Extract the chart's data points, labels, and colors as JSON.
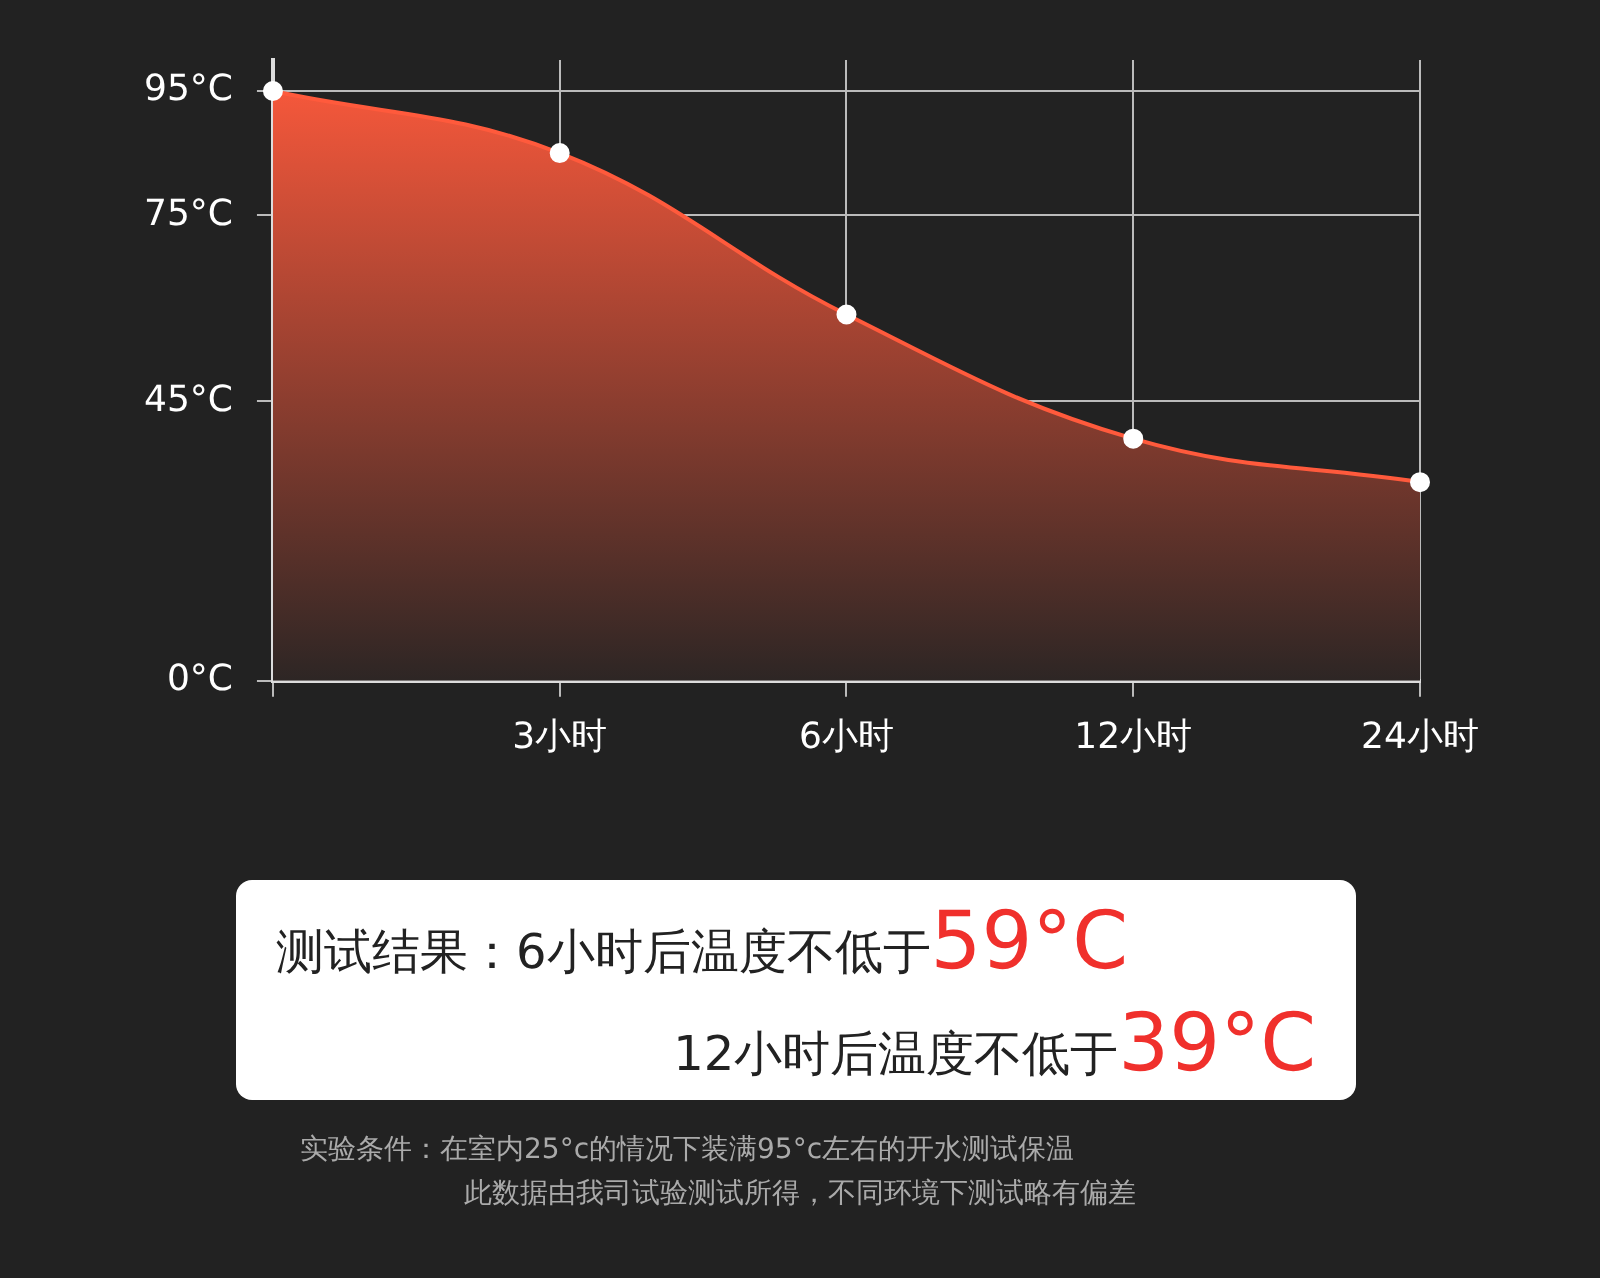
{
  "chart_data": {
    "type": "area",
    "categories": [
      null,
      "3小时",
      "6小时",
      "12小时",
      "24小时"
    ],
    "series": [
      {
        "color": "#ff5a3c",
        "values": [
          95,
          85,
          59,
          39,
          32
        ]
      }
    ],
    "ylim": [
      0,
      100
    ],
    "yticks": [
      {
        "value": 0,
        "label": "0°C"
      },
      {
        "value": 45,
        "label": "45°C"
      },
      {
        "value": 75,
        "label": "75°C"
      },
      {
        "value": 95,
        "label": "95°C"
      }
    ],
    "grid": true,
    "legend": false,
    "marker": "circle",
    "annotations": [
      "测试结果：6小时后温度不低于59°C",
      "12小时后温度不低于39°C",
      "实验条件：在室内25°c的情况下装满95°c左右的开水测试保温",
      "此数据由我司试验测试所得，不同环境下测试略有偏差"
    ]
  }
}
